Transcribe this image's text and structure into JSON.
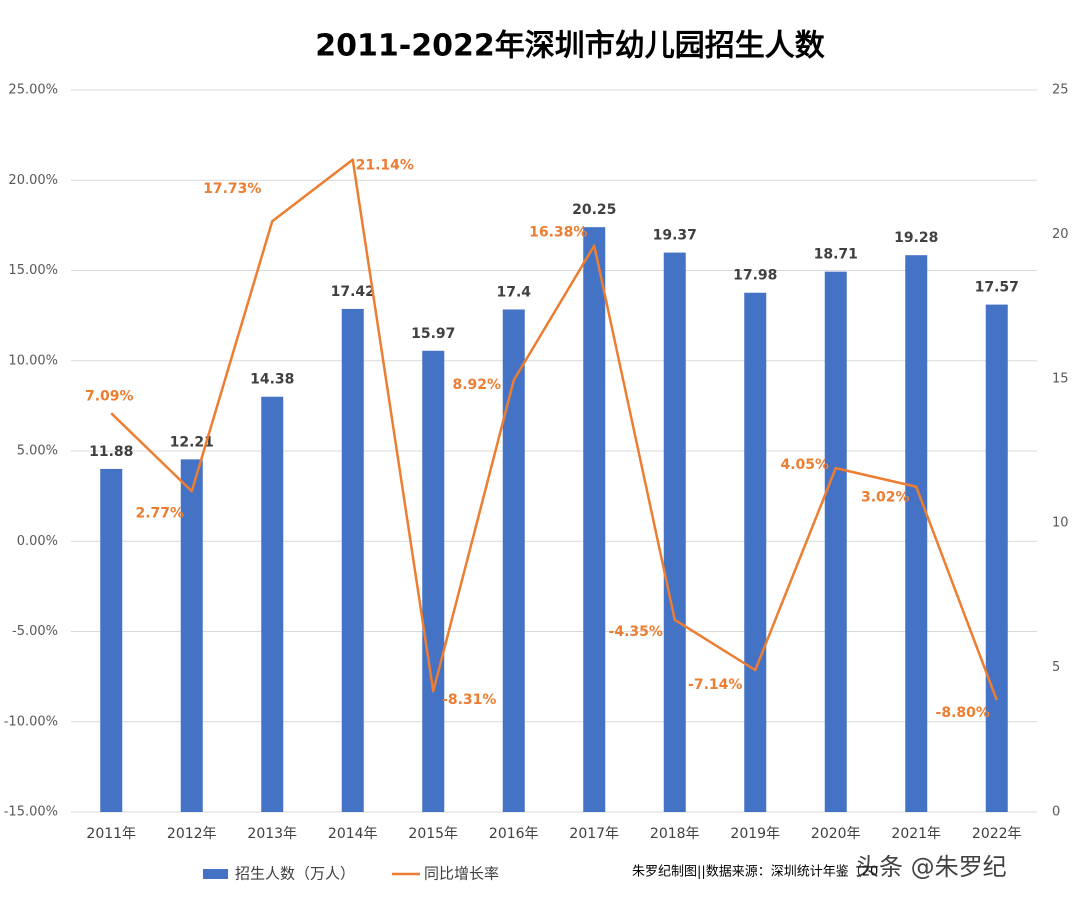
{
  "chart_data": {
    "type": "combo",
    "title": "2011-2022年深圳市幼儿园招生人数",
    "categories": [
      "2011年",
      "2012年",
      "2013年",
      "2014年",
      "2015年",
      "2016年",
      "2017年",
      "2018年",
      "2019年",
      "2020年",
      "2021年",
      "2022年"
    ],
    "series": [
      {
        "name": "招生人数（万人）",
        "type": "bar",
        "axis": "y2",
        "color": "#4472c4",
        "values": [
          11.88,
          12.21,
          14.38,
          17.42,
          15.97,
          17.4,
          20.25,
          19.37,
          17.98,
          18.71,
          19.28,
          17.57
        ]
      },
      {
        "name": "同比增长率",
        "type": "line",
        "color": "#ed7d31",
        "values": [
          7.09,
          2.77,
          17.73,
          21.14,
          -8.31,
          8.92,
          16.38,
          -4.35,
          -7.14,
          4.05,
          3.02,
          -8.8
        ],
        "value_labels": [
          "7.09%",
          "2.77%",
          "17.73%",
          "21.14%",
          "-8.31%",
          "8.92%",
          "16.38%",
          "-4.35%",
          "-7.14%",
          "4.05%",
          "3.02%",
          "-8.80%"
        ]
      }
    ],
    "ylim": [
      -15,
      25
    ],
    "yticks": [
      {
        "value": -15,
        "label": "-15.00%"
      },
      {
        "value": -10,
        "label": "-10.00%"
      },
      {
        "value": -5,
        "label": "-5.00%"
      },
      {
        "value": 0,
        "label": "0.00%"
      },
      {
        "value": 5,
        "label": "5.00%"
      },
      {
        "value": 10,
        "label": "10.00%"
      },
      {
        "value": 15,
        "label": "15.00%"
      },
      {
        "value": 20,
        "label": "20.00%"
      },
      {
        "value": 25,
        "label": "25.00%"
      }
    ],
    "y2lim": [
      0,
      25
    ],
    "y2ticks": [
      0,
      5,
      10,
      15,
      20,
      25
    ],
    "grid": true,
    "source": "朱罗纪制图||数据来源：深圳统计年鉴（20",
    "watermark": "头条 @朱罗纪"
  }
}
